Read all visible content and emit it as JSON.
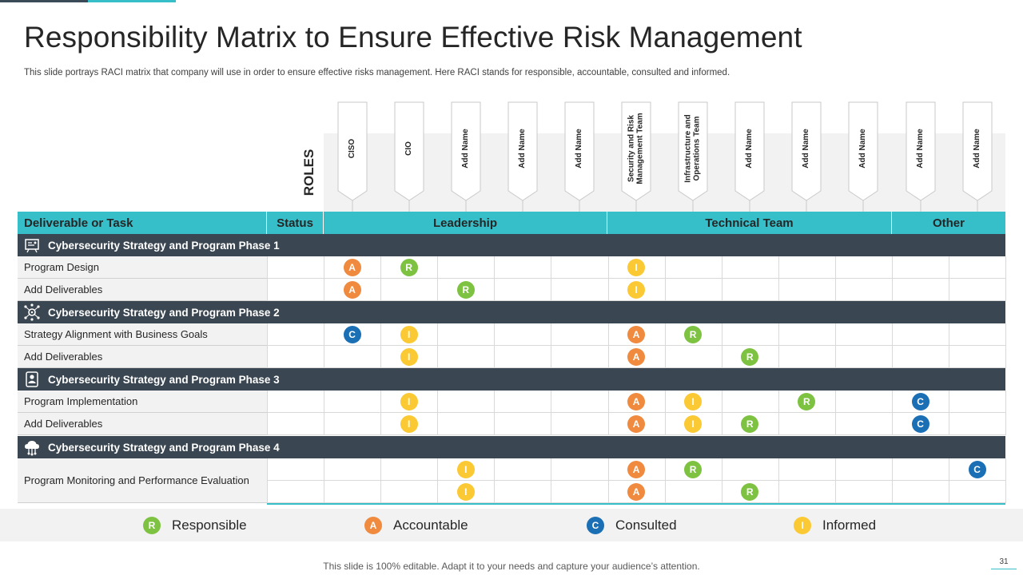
{
  "slide": {
    "title": "Responsibility Matrix to Ensure Effective Risk Management",
    "subtitle": "This slide portrays RACI matrix that company will use in order to ensure effective risks management. Here RACI stands for responsible, accountable, consulted and informed.",
    "roles_label": "ROLES",
    "footer_text": "This slide is 100% editable. Adapt it to your needs and capture your audience’s attention.",
    "page_number": "31"
  },
  "colors": {
    "teal": "#36bec9",
    "dark": "#3a4651",
    "R": "#7ec242",
    "A": "#ef8a3e",
    "C": "#1a6fb5",
    "I": "#fbc934"
  },
  "roles": [
    "CISO",
    "CIO",
    "Add Name",
    "Add Name",
    "Add Name",
    "Security and Risk Management Team",
    "Infrastructure and Operations Team",
    "Add Name",
    "Add Name",
    "Add Name",
    "Add Name",
    "Add Name"
  ],
  "header": {
    "task": "Deliverable or Task",
    "status": "Status",
    "groups": [
      "Leadership",
      "Technical Team",
      "Other"
    ]
  },
  "phases": [
    {
      "label": "Cybersecurity Strategy and Program Phase 1",
      "icon": "strategy-board-icon",
      "rows": [
        {
          "task": "Program Design",
          "cells": [
            "A",
            "R",
            "",
            "",
            "",
            "I",
            "",
            "",
            "",
            "",
            "",
            ""
          ]
        },
        {
          "task": "Add Deliverables",
          "cells": [
            "A",
            "",
            "R",
            "",
            "",
            "I",
            "",
            "",
            "",
            "",
            "",
            ""
          ]
        }
      ]
    },
    {
      "label": "Cybersecurity Strategy and Program Phase 2",
      "icon": "network-gear-icon",
      "rows": [
        {
          "task": "Strategy Alignment with Business Goals",
          "cells": [
            "C",
            "I",
            "",
            "",
            "",
            "A",
            "R",
            "",
            "",
            "",
            "",
            ""
          ]
        },
        {
          "task": "Add Deliverables",
          "cells": [
            "",
            "I",
            "",
            "",
            "",
            "A",
            "",
            "R",
            "",
            "",
            "",
            ""
          ]
        }
      ]
    },
    {
      "label": "Cybersecurity Strategy and Program Phase 3",
      "icon": "secure-user-icon",
      "rows": [
        {
          "task": "Program Implementation",
          "cells": [
            "",
            "I",
            "",
            "",
            "",
            "A",
            "I",
            "",
            "R",
            "",
            "C",
            ""
          ]
        },
        {
          "task": "Add Deliverables",
          "cells": [
            "",
            "I",
            "",
            "",
            "",
            "A",
            "I",
            "R",
            "",
            "",
            "C",
            ""
          ]
        }
      ]
    },
    {
      "label": "Cybersecurity Strategy and Program Phase 4",
      "icon": "cloud-network-icon",
      "rows": [
        {
          "task": "Program Monitoring and Performance Evaluation",
          "cells": [
            "",
            "",
            "I",
            "",
            "",
            "A",
            "R",
            "",
            "",
            "",
            "",
            "C"
          ]
        },
        {
          "task": "",
          "cells": [
            "",
            "",
            "I",
            "",
            "",
            "A",
            "",
            "R",
            "",
            "",
            "",
            ""
          ]
        }
      ]
    }
  ],
  "legend": [
    {
      "letter": "R",
      "label": "Responsible"
    },
    {
      "letter": "A",
      "label": "Accountable"
    },
    {
      "letter": "C",
      "label": "Consulted"
    },
    {
      "letter": "I",
      "label": "Informed"
    }
  ]
}
